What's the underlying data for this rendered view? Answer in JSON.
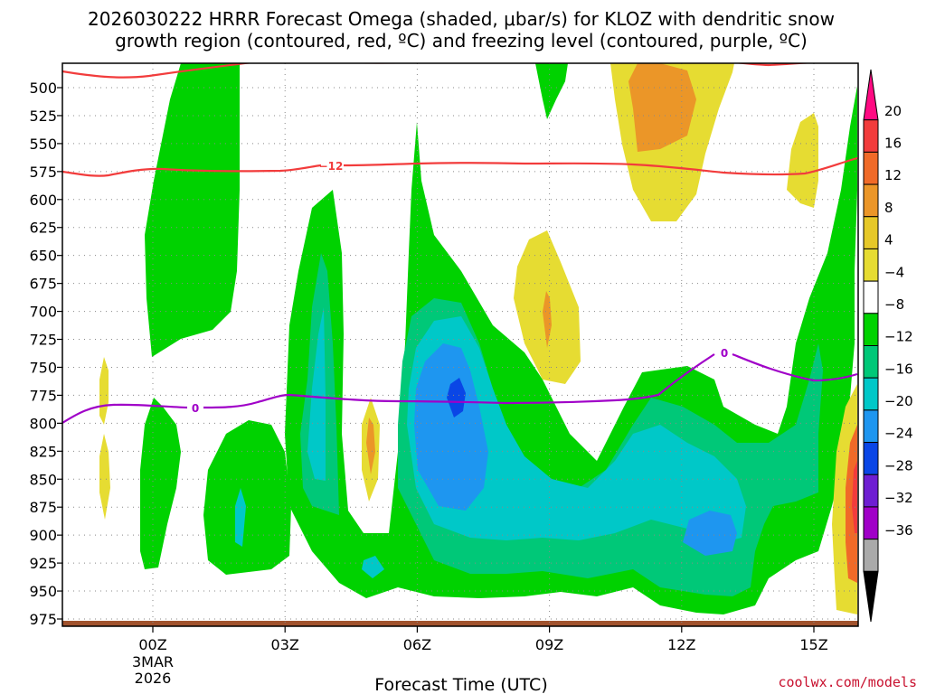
{
  "chart_data": {
    "type": "heatmap",
    "title_lines": [
      "2026030222 HRRR Forecast Omega (shaded, μbar/s) for KLOZ with dendritic snow",
      "growth region (contoured, red, ºC) and freezing level (contoured, purple, ºC)"
    ],
    "xlabel": "Forecast Time (UTC)",
    "ylabel": "",
    "x_ticks": [
      {
        "hour": 0,
        "label": "00Z",
        "sub": [
          "3MAR",
          "2026"
        ]
      },
      {
        "hour": 3,
        "label": "03Z"
      },
      {
        "hour": 6,
        "label": "06Z"
      },
      {
        "hour": 9,
        "label": "09Z"
      },
      {
        "hour": 12,
        "label": "12Z"
      },
      {
        "hour": 15,
        "label": "15Z"
      }
    ],
    "x_range_hours": [
      -2,
      16
    ],
    "y_ticks": [
      500,
      525,
      550,
      575,
      600,
      625,
      650,
      675,
      700,
      725,
      750,
      775,
      800,
      825,
      850,
      875,
      900,
      925,
      950,
      975
    ],
    "y_range_mb": [
      475,
      990
    ],
    "colorbar": {
      "labels": [
        "20",
        "16",
        "12",
        "8",
        "4",
        "−4",
        "−8",
        "−12",
        "−16",
        "−20",
        "−24",
        "−28",
        "−32",
        "−36"
      ],
      "colors": [
        "#ff0a82",
        "#f23c3c",
        "#f06a28",
        "#eb9628",
        "#e6c828",
        "#e6dc32",
        "#ffffff",
        "#00d200",
        "#00c878",
        "#00c8c8",
        "#1e96f0",
        "#0a46e6",
        "#6e1ed2",
        "#a000c8",
        "#aaaaaa",
        "#000000"
      ]
    },
    "contours": {
      "dgz_labels": [
        "−12"
      ],
      "freezing_labels": [
        "0",
        "0"
      ]
    },
    "credit": "coolwx.com/models"
  }
}
